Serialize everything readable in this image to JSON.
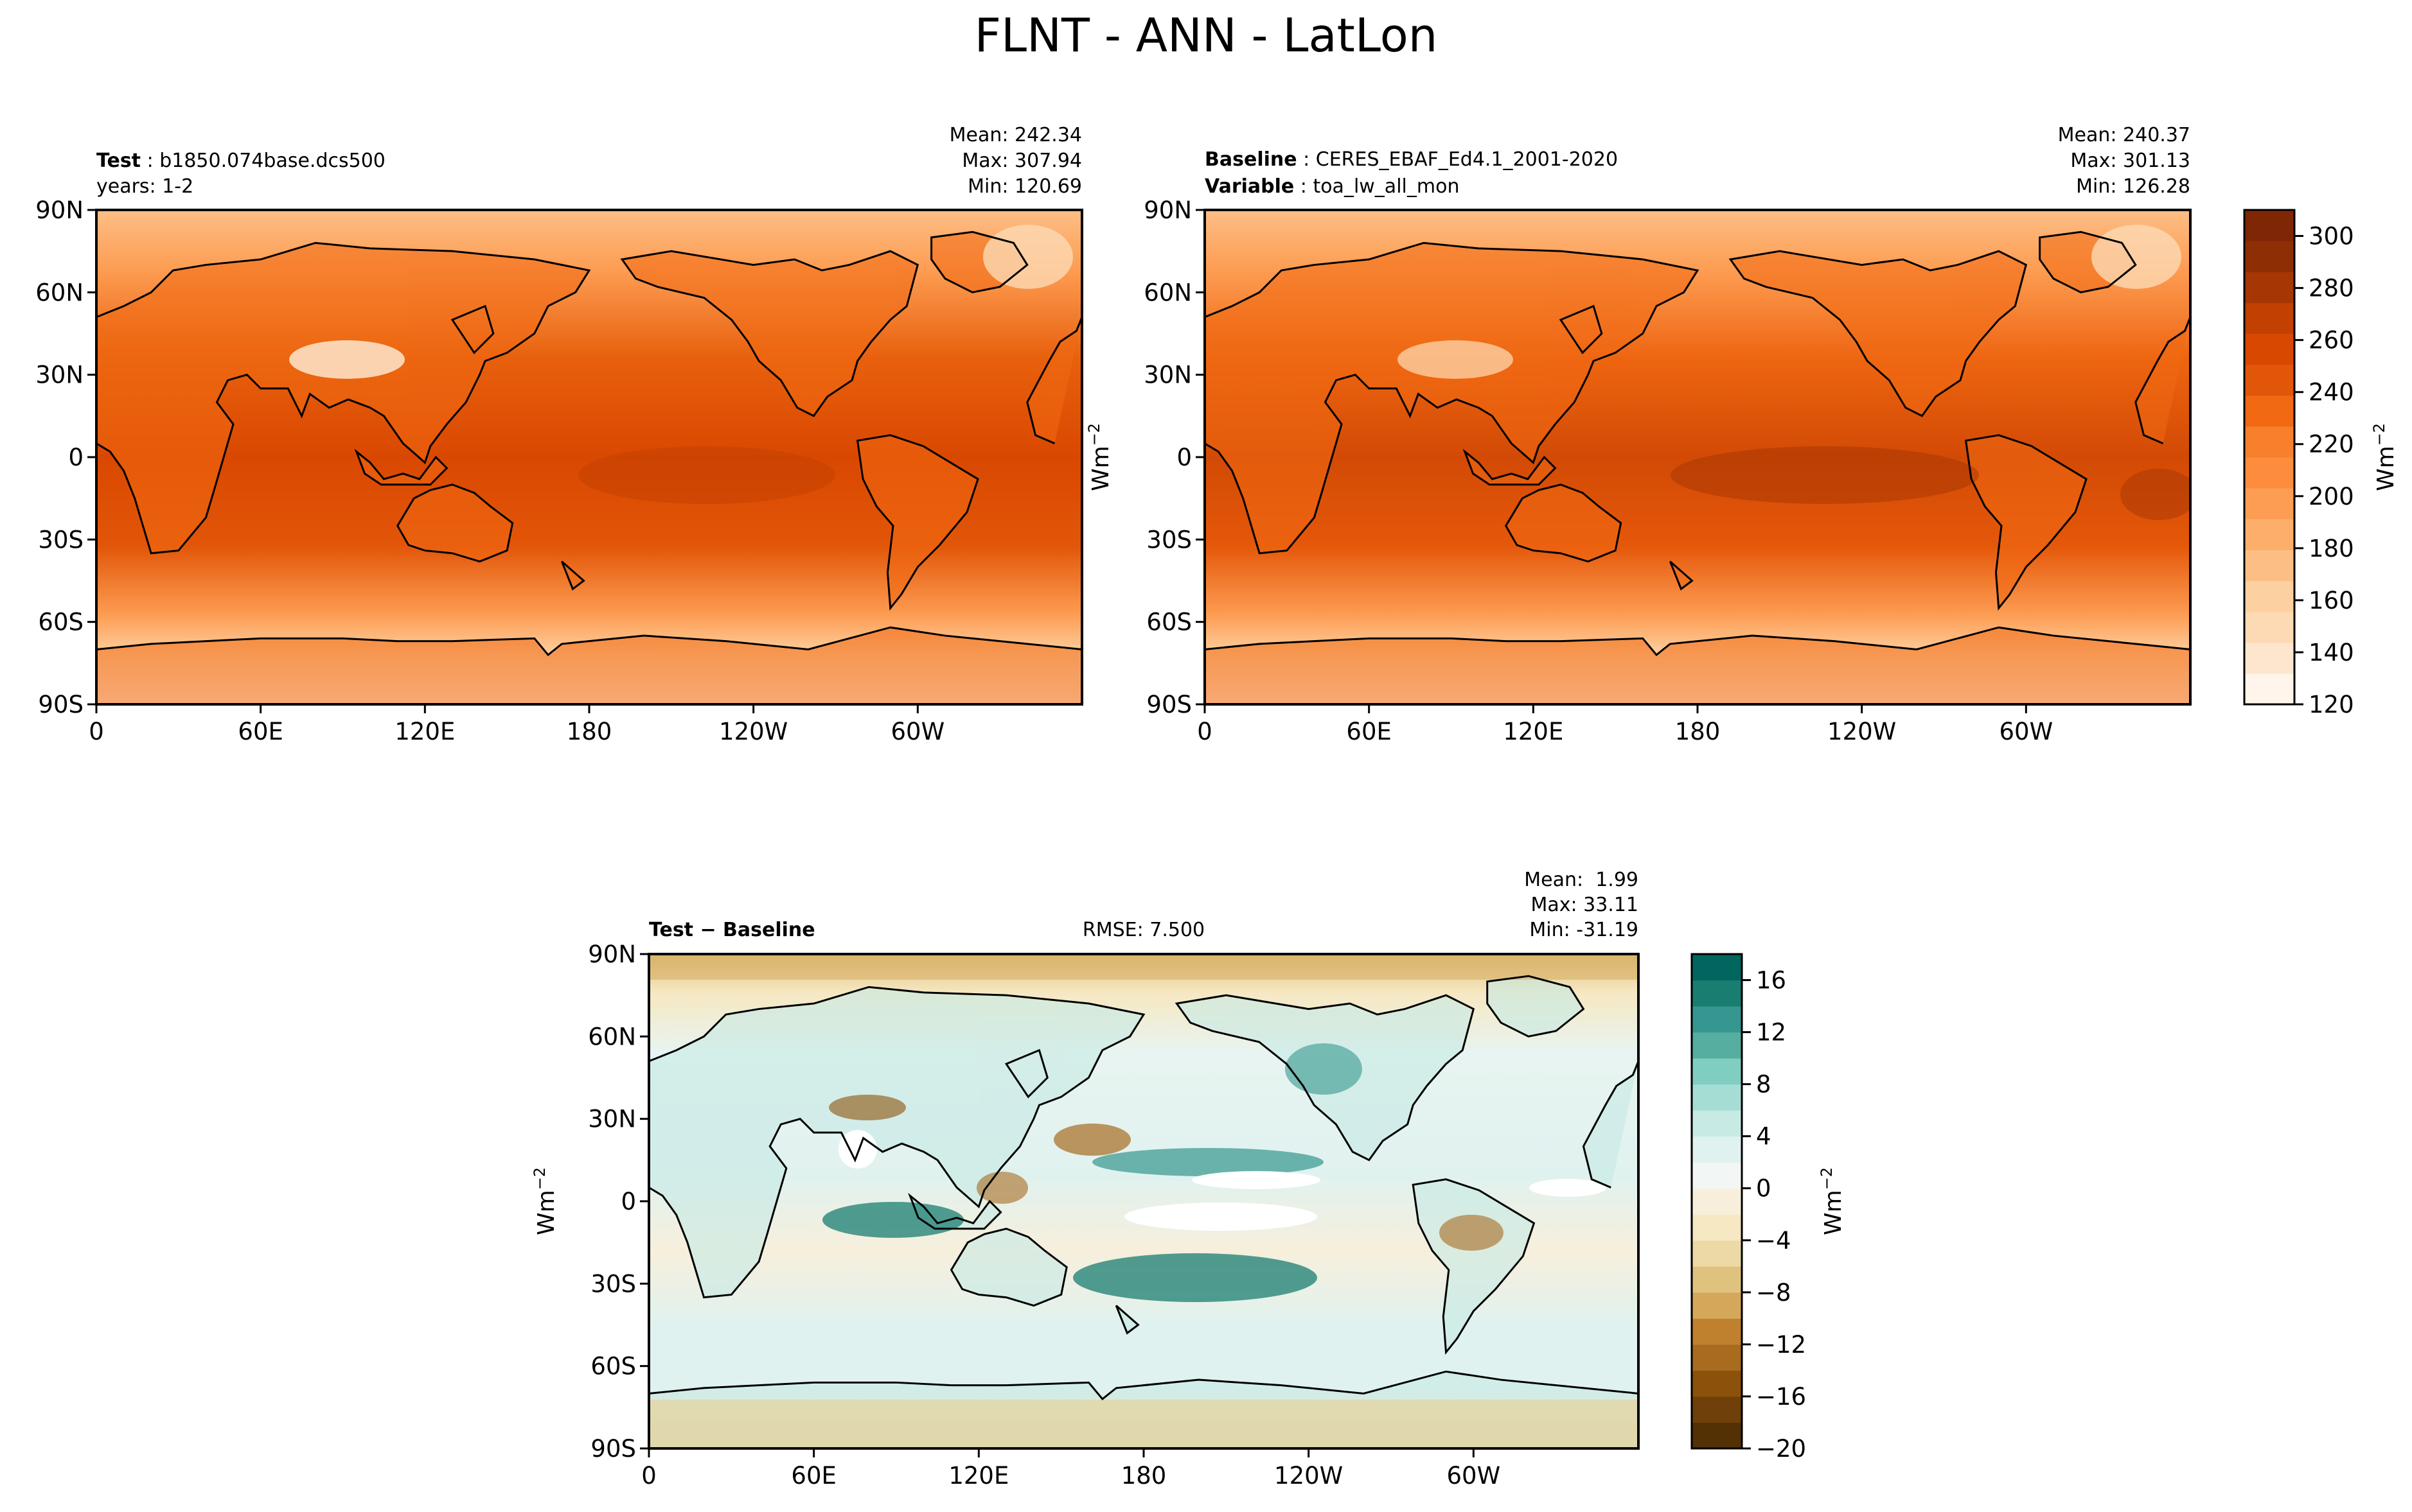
{
  "title": "FLNT - ANN - LatLon",
  "panels": [
    {
      "id": "test",
      "left_line1_bold": "Test",
      "left_line1": "b1850.074base.dcs500",
      "left_line2_bold": "",
      "left_line2": "years: 1-2",
      "center": "",
      "stats": [
        "Mean: 242.34",
        "Max: 307.94",
        "Min: 120.69"
      ]
    },
    {
      "id": "baseline",
      "left_line1_bold": "Baseline",
      "left_line1": "CERES_EBAF_Ed4.1_2001-2020",
      "left_line2_bold": "Variable",
      "left_line2": "toa_lw_all_mon",
      "center": "",
      "stats": [
        "Mean: 240.37",
        "Max: 301.13",
        "Min: 126.28"
      ]
    },
    {
      "id": "diff",
      "left_line1_bold": "Test − Baseline",
      "left_line1": "",
      "left_line2_bold": "",
      "left_line2": "",
      "center": "RMSE: 7.500",
      "stats": [
        "Mean:  1.99",
        "Max: 33.11",
        "Min: -31.19"
      ]
    }
  ],
  "chart_data": [
    {
      "type": "heatmap",
      "panel": "Test",
      "map_projection": "PlateCarree (lon 0-360)",
      "x_ticks": [
        "0",
        "60E",
        "120E",
        "180",
        "120W",
        "60W"
      ],
      "y_ticks": [
        "90N",
        "60N",
        "30N",
        "0",
        "30S",
        "60S",
        "90S"
      ],
      "colormap": "Oranges",
      "clim": [
        120,
        310
      ],
      "stats": {
        "mean": 242.34,
        "max": 307.94,
        "min": 120.69
      }
    },
    {
      "type": "heatmap",
      "panel": "Baseline",
      "map_projection": "PlateCarree (lon 0-360)",
      "x_ticks": [
        "0",
        "60E",
        "120E",
        "180",
        "120W",
        "60W"
      ],
      "y_ticks": [
        "90N",
        "60N",
        "30N",
        "0",
        "30S",
        "60S",
        "90S"
      ],
      "colormap": "Oranges",
      "clim": [
        120,
        310
      ],
      "stats": {
        "mean": 240.37,
        "max": 301.13,
        "min": 126.28
      }
    },
    {
      "type": "heatmap",
      "panel": "Test - Baseline",
      "map_projection": "PlateCarree (lon 0-360)",
      "x_ticks": [
        "0",
        "60E",
        "120E",
        "180",
        "120W",
        "60W"
      ],
      "y_ticks": [
        "90N",
        "60N",
        "30N",
        "0",
        "30S",
        "60S",
        "90S"
      ],
      "colormap": "BrBG",
      "clim": [
        -20,
        18
      ],
      "rmse": 7.5,
      "stats": {
        "mean": 1.99,
        "max": 33.11,
        "min": -31.19
      }
    }
  ],
  "colorbars": {
    "main": {
      "label": "Wm",
      "label_sup": "−2",
      "ticks": [
        "120",
        "140",
        "160",
        "180",
        "200",
        "220",
        "240",
        "260",
        "280",
        "300"
      ],
      "tick_values": [
        120,
        140,
        160,
        180,
        200,
        220,
        240,
        260,
        280,
        300
      ],
      "range": [
        120,
        310
      ],
      "colors": [
        "#fff5eb",
        "#fee6ce",
        "#fdd9b4",
        "#fdd0a2",
        "#fdbe85",
        "#fdae6b",
        "#fd9d53",
        "#fd8d3c",
        "#f87f2c",
        "#f16913",
        "#e25609",
        "#d94801",
        "#c14002",
        "#a63603",
        "#8e2e04",
        "#7f2704"
      ]
    },
    "diff": {
      "label": "Wm",
      "label_sup": "−2",
      "ticks": [
        "−20",
        "−16",
        "−12",
        "−8",
        "−4",
        "0",
        "4",
        "8",
        "12",
        "16"
      ],
      "tick_values": [
        -20,
        -16,
        -12,
        -8,
        -4,
        0,
        4,
        8,
        12,
        16
      ],
      "range": [
        -20,
        18
      ],
      "colors": [
        "#543005",
        "#6f4009",
        "#8c510a",
        "#a86b1f",
        "#bf812d",
        "#d4a75a",
        "#dfc27d",
        "#ecd9a5",
        "#f6e8c3",
        "#f7efdc",
        "#f2f6f5",
        "#e0f2ef",
        "#c7eae5",
        "#a5ddd4",
        "#80cdc1",
        "#55ae9f",
        "#35978f",
        "#1a7d72",
        "#01665e"
      ]
    }
  },
  "axis_units_label": "Wm",
  "axis_units_sup": "−2"
}
